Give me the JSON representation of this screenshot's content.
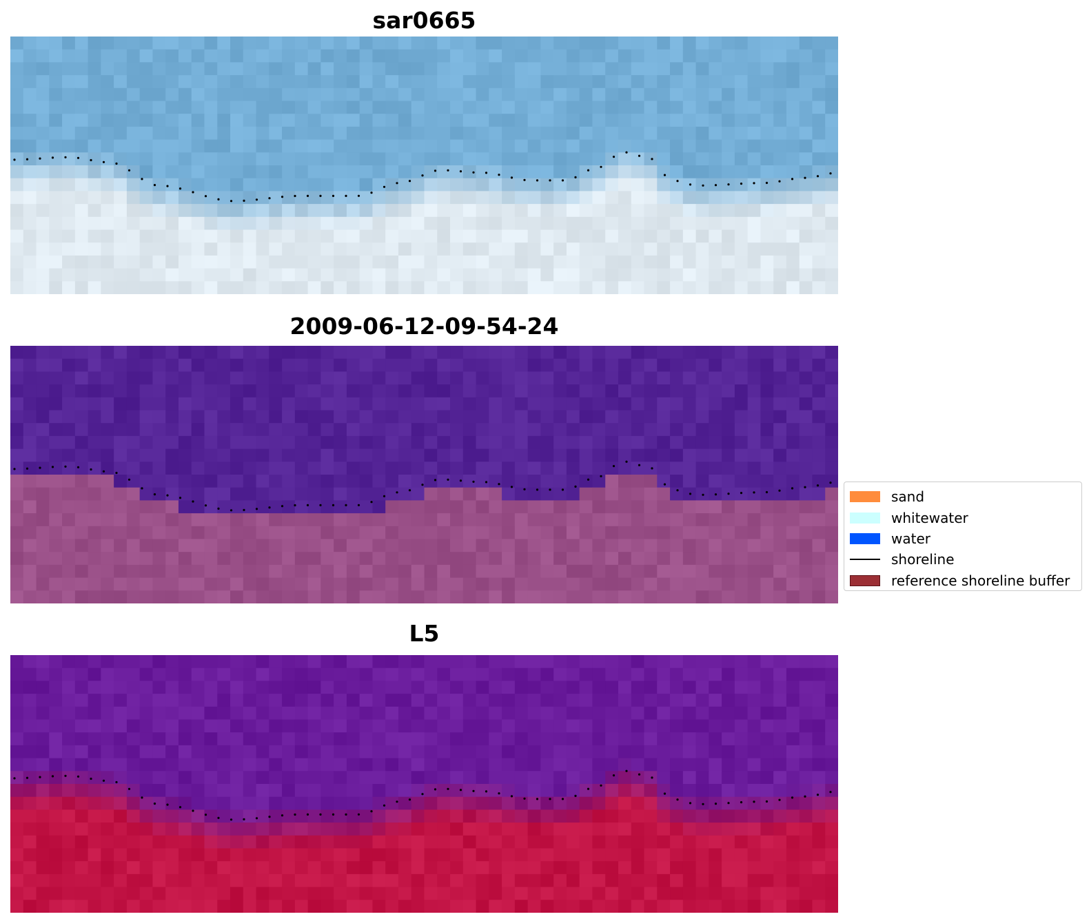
{
  "panels": [
    {
      "title": "sar0665"
    },
    {
      "title": "2009-06-12-09-54-24"
    },
    {
      "title": "L5"
    }
  ],
  "legend": {
    "items": [
      {
        "label": "sand",
        "color": "#ff8c3c",
        "kind": "patch"
      },
      {
        "label": "whitewater",
        "color": "#ccffff",
        "kind": "patch"
      },
      {
        "label": "water",
        "color": "#0055ff",
        "kind": "patch"
      },
      {
        "label": "shoreline",
        "color": "#000000",
        "kind": "line"
      },
      {
        "label": "reference shoreline buffer",
        "color": "#9c2f35",
        "kind": "patch"
      }
    ]
  },
  "colors": {
    "rgb_water": "#74aed6",
    "rgb_land": "#dfe9f0",
    "classified_water": "#542496",
    "classified_land": "#9a5088",
    "index_water": "#6a1c9c",
    "index_land": "#c21445"
  }
}
